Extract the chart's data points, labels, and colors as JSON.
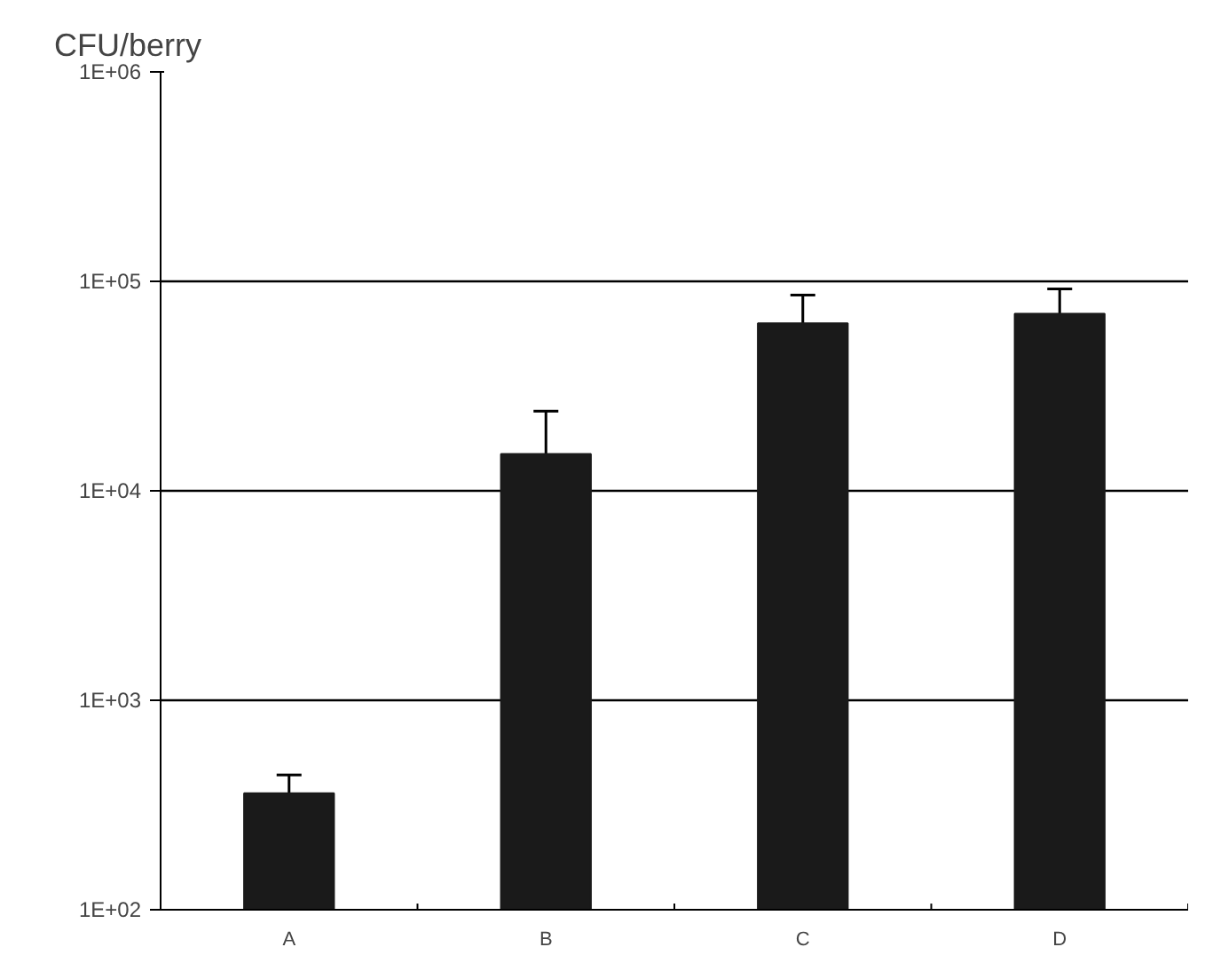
{
  "chart_data": {
    "type": "bar",
    "ylabel": "CFU/berry",
    "categories": [
      "A",
      "B",
      "C",
      "D"
    ],
    "values": [
      360,
      15000,
      63000,
      70000
    ],
    "errors": [
      [
        360,
        440
      ],
      [
        15000,
        24000
      ],
      [
        63000,
        86000
      ],
      [
        70000,
        92000
      ]
    ],
    "color": "#1a1a1a",
    "log": "y",
    "ylim": [
      100,
      1000000
    ],
    "yticks": [
      {
        "value": 100,
        "label": "1E+02"
      },
      {
        "value": 1000,
        "label": "1E+03"
      },
      {
        "value": 10000,
        "label": "1E+04"
      },
      {
        "value": 100000,
        "label": "1E+05"
      },
      {
        "value": 1000000,
        "label": "1E+06"
      }
    ],
    "grid": "y"
  }
}
